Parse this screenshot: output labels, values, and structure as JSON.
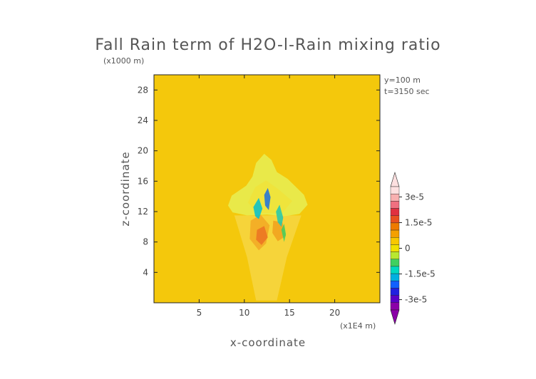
{
  "chart_data": {
    "type": "heatmap",
    "title": "Fall Rain term of H2O-l-Rain mixing ratio",
    "xlabel": "x-coordinate",
    "ylabel": "z-coordinate",
    "x_unit": "(x1E4 m)",
    "y_unit": "(x1000 m)",
    "annotations": [
      "y=100 m",
      "t=3150 sec"
    ],
    "x_ticks": [
      5,
      10,
      15,
      20
    ],
    "y_ticks": [
      4,
      8,
      12,
      16,
      20,
      24,
      28
    ],
    "xlim": [
      0,
      25
    ],
    "ylim": [
      0,
      30
    ],
    "background_value": 0,
    "colorbar": {
      "tick_labels": [
        "3e-5",
        "1.5e-5",
        "0",
        "-1.5e-5",
        "-3e-5"
      ],
      "tick_values": [
        3e-05,
        1.5e-05,
        0,
        -1.5e-05,
        -3e-05
      ],
      "range": [
        -3.6e-05,
        3.6e-05
      ],
      "colors": [
        "#8b00a8",
        "#5a00c8",
        "#2020e0",
        "#1060ff",
        "#00b0e0",
        "#00d8c0",
        "#40d060",
        "#b8e830",
        "#f0e000",
        "#f8c800",
        "#f4a000",
        "#ee7a00",
        "#e85020",
        "#e03040",
        "#f07080",
        "#f8b0b0",
        "#fde0e0"
      ]
    },
    "grid": false,
    "legend": "right"
  }
}
